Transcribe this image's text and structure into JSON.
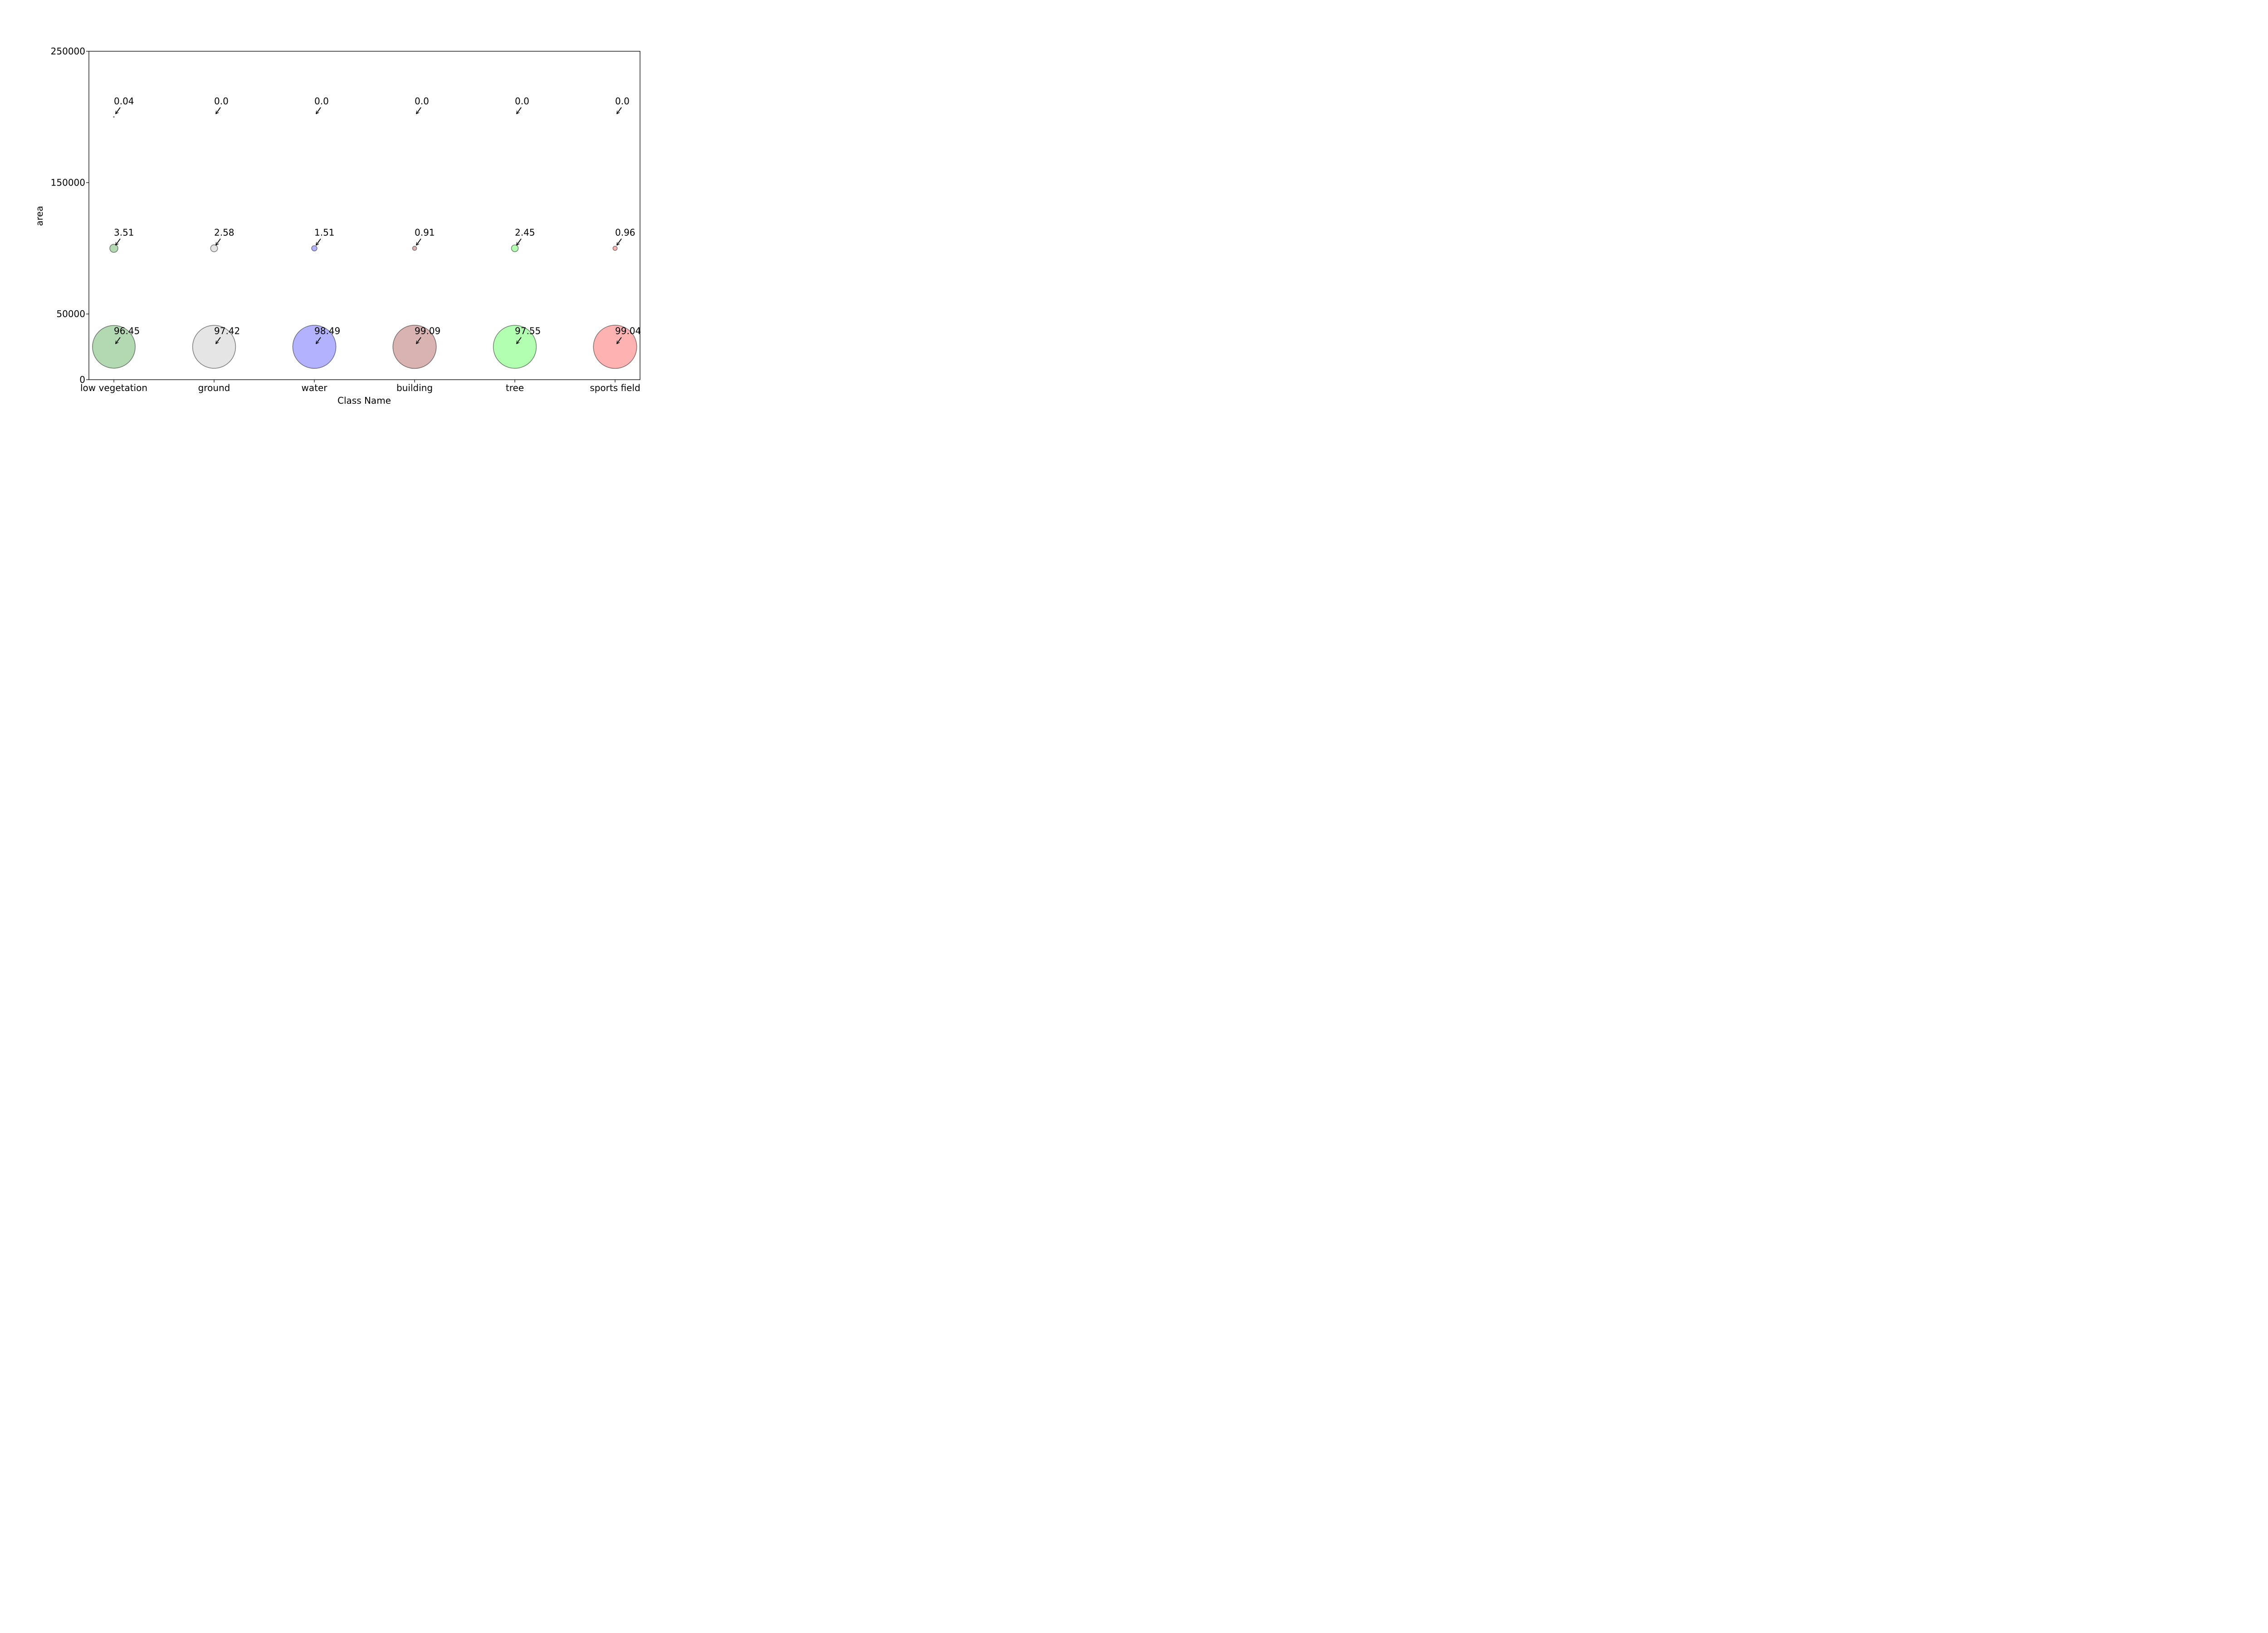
{
  "chart_data": {
    "type": "scatter",
    "subtype": "bubble",
    "xlabel": "Class Name",
    "ylabel": "area",
    "categories": [
      "low vegetation",
      "ground",
      "water",
      "building",
      "tree",
      "sports field"
    ],
    "colors": [
      "#008000",
      "#a9a9a9",
      "#0000ff",
      "#800000",
      "#00ff00",
      "#ff0000"
    ],
    "yticks": [
      "0",
      "50000",
      "150000",
      "250000"
    ],
    "ylim": [
      0,
      250000
    ],
    "grid": false,
    "legend": "none",
    "series": [
      {
        "y": 25000,
        "values": [
          96.45,
          97.42,
          98.49,
          99.09,
          97.55,
          99.04
        ],
        "labels": [
          "96.45",
          "97.42",
          "98.49",
          "99.09",
          "97.55",
          "99.04"
        ]
      },
      {
        "y": 100000,
        "values": [
          3.51,
          2.58,
          1.51,
          0.91,
          2.45,
          0.96
        ],
        "labels": [
          "3.51",
          "2.58",
          "1.51",
          "0.91",
          "2.45",
          "0.96"
        ]
      },
      {
        "y": 200000,
        "values": [
          0.04,
          0.0,
          0.0,
          0.0,
          0.0,
          0.0
        ],
        "labels": [
          "0.04",
          "0.0",
          "0.0",
          "0.0",
          "0.0",
          "0.0"
        ]
      }
    ]
  }
}
